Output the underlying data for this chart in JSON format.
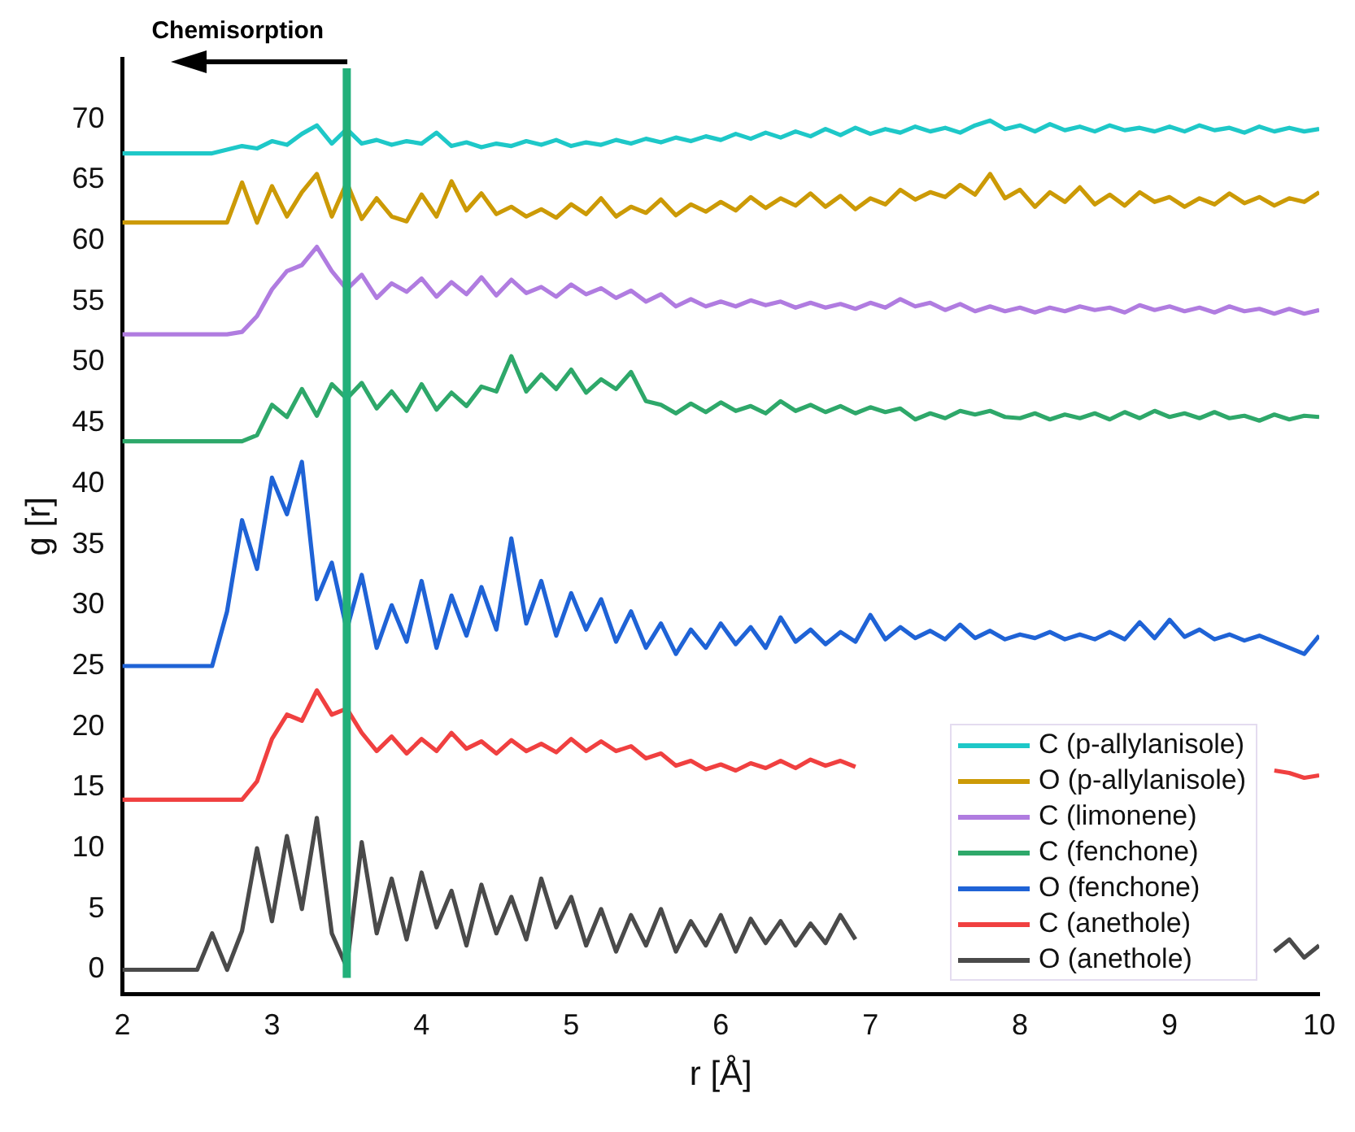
{
  "chart_data": {
    "type": "line",
    "annotations": [
      "Chemisorption"
    ],
    "xlabel": "r [Å]",
    "ylabel": "g [r]",
    "x": [
      2.0,
      2.1,
      2.2,
      2.3,
      2.4,
      2.5,
      2.6,
      2.7,
      2.8,
      2.9,
      3.0,
      3.1,
      3.2,
      3.3,
      3.4,
      3.5,
      3.6,
      3.7,
      3.8,
      3.9,
      4.0,
      4.1,
      4.2,
      4.3,
      4.4,
      4.5,
      4.6,
      4.7,
      4.8,
      4.9,
      5.0,
      5.1,
      5.2,
      5.3,
      5.4,
      5.5,
      5.6,
      5.7,
      5.8,
      5.9,
      6.0,
      6.1,
      6.2,
      6.3,
      6.4,
      6.5,
      6.6,
      6.7,
      6.8,
      6.9,
      7.0,
      7.1,
      7.2,
      7.3,
      7.4,
      7.5,
      7.6,
      7.7,
      7.8,
      7.9,
      8.0,
      8.1,
      8.2,
      8.3,
      8.4,
      8.5,
      8.6,
      8.7,
      8.8,
      8.9,
      9.0,
      9.1,
      9.2,
      9.3,
      9.4,
      9.5,
      9.6,
      9.7,
      9.8,
      9.9,
      10.0
    ],
    "series": [
      {
        "name": "C (p-allylanisole)",
        "color": "#1ec8c8",
        "values": [
          67.2,
          67.2,
          67.2,
          67.2,
          67.2,
          67.2,
          67.2,
          67.5,
          67.8,
          67.6,
          68.2,
          67.9,
          68.8,
          69.5,
          68.0,
          69.2,
          68.0,
          68.3,
          67.9,
          68.2,
          68.0,
          68.9,
          67.8,
          68.1,
          67.7,
          68.0,
          67.8,
          68.2,
          67.9,
          68.3,
          67.8,
          68.1,
          67.9,
          68.3,
          68.0,
          68.4,
          68.1,
          68.5,
          68.2,
          68.6,
          68.3,
          68.8,
          68.4,
          68.9,
          68.5,
          69.0,
          68.6,
          69.2,
          68.7,
          69.3,
          68.8,
          69.2,
          68.9,
          69.4,
          69.0,
          69.3,
          68.9,
          69.5,
          69.9,
          69.2,
          69.5,
          69.0,
          69.6,
          69.1,
          69.4,
          69.0,
          69.5,
          69.1,
          69.3,
          69.0,
          69.4,
          69.0,
          69.5,
          69.1,
          69.3,
          68.9,
          69.4,
          69.0,
          69.3,
          69.0,
          69.2
        ]
      },
      {
        "name": "O (p-allylanisole)",
        "color": "#cc9a06",
        "values": [
          61.5,
          61.5,
          61.5,
          61.5,
          61.5,
          61.5,
          61.5,
          61.5,
          64.8,
          61.5,
          64.5,
          62.0,
          64.0,
          65.5,
          62.0,
          64.8,
          61.8,
          63.5,
          62.0,
          61.6,
          63.8,
          62.0,
          64.9,
          62.5,
          63.9,
          62.2,
          62.8,
          62.0,
          62.6,
          61.9,
          63.0,
          62.2,
          63.5,
          62.0,
          62.8,
          62.3,
          63.4,
          62.1,
          63.0,
          62.4,
          63.2,
          62.5,
          63.6,
          62.7,
          63.5,
          62.9,
          63.9,
          62.8,
          63.7,
          62.6,
          63.5,
          63.0,
          64.2,
          63.4,
          64.0,
          63.6,
          64.6,
          63.8,
          65.5,
          63.5,
          64.2,
          62.8,
          64.0,
          63.2,
          64.4,
          63.0,
          63.8,
          62.9,
          64.0,
          63.2,
          63.6,
          62.8,
          63.5,
          63.0,
          63.9,
          63.1,
          63.6,
          62.9,
          63.5,
          63.2,
          64.0
        ]
      },
      {
        "name": "C (limonene)",
        "color": "#b07ce0",
        "values": [
          52.3,
          52.3,
          52.3,
          52.3,
          52.3,
          52.3,
          52.3,
          52.3,
          52.5,
          53.8,
          56.0,
          57.5,
          58.0,
          59.5,
          57.5,
          56.0,
          57.2,
          55.3,
          56.5,
          55.8,
          56.9,
          55.4,
          56.6,
          55.6,
          57.0,
          55.5,
          56.8,
          55.7,
          56.2,
          55.4,
          56.4,
          55.6,
          56.1,
          55.3,
          55.9,
          55.0,
          55.6,
          54.6,
          55.2,
          54.6,
          55.0,
          54.6,
          55.1,
          54.7,
          55.0,
          54.5,
          54.9,
          54.5,
          54.8,
          54.4,
          54.9,
          54.5,
          55.2,
          54.6,
          54.9,
          54.3,
          54.8,
          54.2,
          54.6,
          54.2,
          54.5,
          54.1,
          54.5,
          54.2,
          54.6,
          54.3,
          54.5,
          54.1,
          54.7,
          54.3,
          54.6,
          54.2,
          54.5,
          54.1,
          54.6,
          54.2,
          54.4,
          54.0,
          54.4,
          54.0,
          54.3
        ]
      },
      {
        "name": "C (fenchone)",
        "color": "#2ea86a",
        "values": [
          43.5,
          43.5,
          43.5,
          43.5,
          43.5,
          43.5,
          43.5,
          43.5,
          43.5,
          44.0,
          46.5,
          45.5,
          47.8,
          45.6,
          48.2,
          47.0,
          48.3,
          46.2,
          47.6,
          46.0,
          48.2,
          46.1,
          47.5,
          46.4,
          48.0,
          47.6,
          50.5,
          47.6,
          49.0,
          47.8,
          49.4,
          47.5,
          48.6,
          47.8,
          49.2,
          46.8,
          46.5,
          45.8,
          46.6,
          45.9,
          46.7,
          46.0,
          46.4,
          45.8,
          46.8,
          46.0,
          46.5,
          45.9,
          46.4,
          45.8,
          46.3,
          45.9,
          46.2,
          45.3,
          45.8,
          45.4,
          46.0,
          45.7,
          46.0,
          45.5,
          45.4,
          45.8,
          45.3,
          45.7,
          45.4,
          45.8,
          45.3,
          45.9,
          45.4,
          46.0,
          45.5,
          45.8,
          45.4,
          45.9,
          45.4,
          45.6,
          45.2,
          45.7,
          45.3,
          45.6,
          45.5
        ]
      },
      {
        "name": "O (fenchone)",
        "color": "#1f63d6",
        "values": [
          25,
          25,
          25,
          25,
          25,
          25,
          25,
          29.5,
          37.0,
          33.0,
          40.5,
          37.5,
          41.8,
          30.5,
          33.5,
          28.0,
          32.5,
          26.5,
          30.0,
          27.0,
          32.0,
          26.5,
          30.8,
          27.5,
          31.5,
          28.0,
          35.5,
          28.5,
          32.0,
          27.5,
          31.0,
          28.0,
          30.5,
          27.0,
          29.5,
          26.5,
          28.5,
          26.0,
          28.0,
          26.5,
          28.5,
          26.8,
          28.2,
          26.5,
          29.0,
          27.0,
          28.0,
          26.8,
          27.8,
          27.0,
          29.2,
          27.2,
          28.2,
          27.3,
          27.9,
          27.2,
          28.4,
          27.3,
          27.9,
          27.2,
          27.6,
          27.3,
          27.8,
          27.2,
          27.6,
          27.2,
          27.8,
          27.2,
          28.6,
          27.3,
          28.8,
          27.4,
          28.0,
          27.2,
          27.6,
          27.1,
          27.5,
          27.0,
          26.5,
          26.0,
          27.5
        ]
      },
      {
        "name": "C (anethole)",
        "color": "#f04040",
        "values": [
          14,
          14,
          14,
          14,
          14,
          14,
          14,
          14,
          14,
          15.5,
          19.0,
          21.0,
          20.5,
          23.0,
          21.0,
          21.5,
          19.5,
          18.0,
          19.2,
          17.8,
          19.0,
          18.0,
          19.5,
          18.2,
          18.8,
          17.8,
          18.9,
          18.0,
          18.6,
          17.9,
          19.0,
          18.0,
          18.8,
          18.0,
          18.4,
          17.4,
          17.8,
          16.8,
          17.2,
          16.5,
          16.9,
          16.4,
          17.0,
          16.6,
          17.2,
          16.6,
          17.3,
          16.8,
          17.2,
          16.7,
          null,
          null,
          null,
          null,
          null,
          null,
          null,
          null,
          null,
          null,
          null,
          null,
          null,
          null,
          null,
          null,
          null,
          null,
          null,
          null,
          null,
          null,
          null,
          null,
          null,
          null,
          null,
          16.4,
          16.2,
          15.8,
          16.0
        ]
      },
      {
        "name": "O (anethole)",
        "color": "#4a4a4a",
        "values": [
          0,
          0,
          0,
          0,
          0,
          0,
          3.0,
          0,
          3.2,
          10.0,
          4.0,
          11.0,
          5.0,
          12.5,
          3.0,
          0.2,
          10.5,
          3.0,
          7.5,
          2.5,
          8.0,
          3.5,
          6.5,
          2.0,
          7.0,
          3.0,
          6.0,
          2.5,
          7.5,
          3.5,
          6.0,
          2.0,
          5.0,
          1.5,
          4.5,
          2.0,
          5.0,
          1.5,
          4.0,
          2.0,
          4.5,
          1.5,
          4.2,
          2.2,
          4.0,
          2.0,
          3.8,
          2.2,
          4.5,
          2.5,
          null,
          null,
          null,
          null,
          null,
          null,
          null,
          null,
          null,
          null,
          null,
          null,
          null,
          null,
          null,
          null,
          null,
          null,
          null,
          null,
          null,
          null,
          null,
          null,
          null,
          null,
          null,
          1.5,
          2.5,
          1.0,
          2.0
        ]
      }
    ],
    "xlim": [
      2,
      10
    ],
    "xticks": [
      2,
      3,
      4,
      5,
      6,
      7,
      8,
      9,
      10
    ],
    "ylim": [
      -2,
      75
    ],
    "yticks": [
      0,
      5,
      10,
      15,
      20,
      25,
      30,
      35,
      40,
      45,
      50,
      55,
      60,
      65,
      70
    ],
    "ref_lines": [
      {
        "axis": "x",
        "value": 3.5,
        "color": "#22b07a"
      }
    ],
    "legend": "bottom right",
    "grid": false
  }
}
